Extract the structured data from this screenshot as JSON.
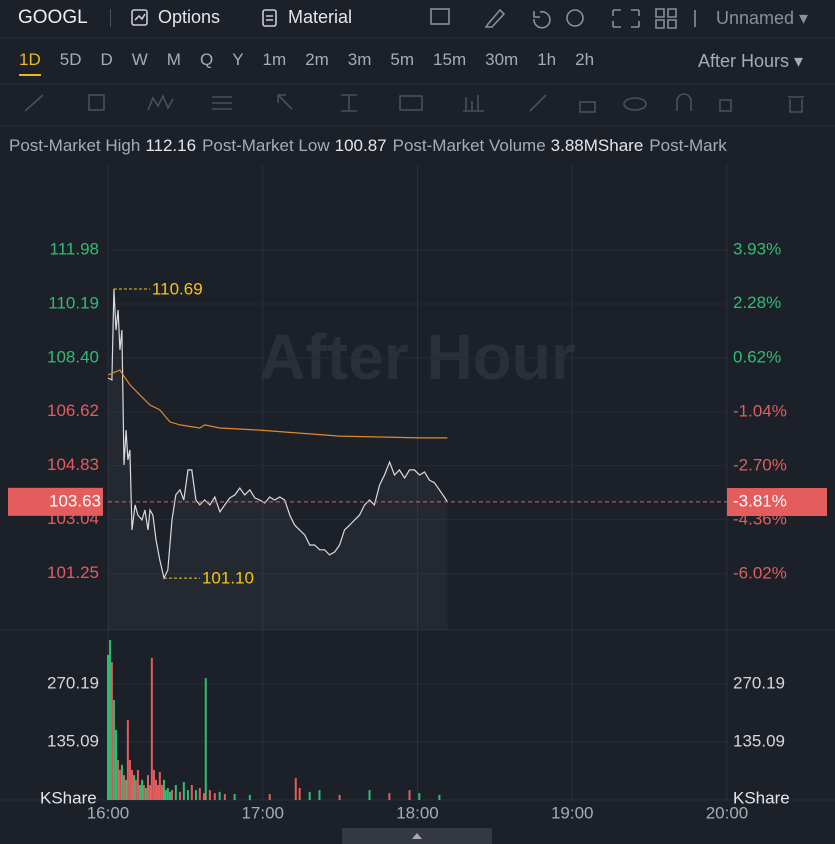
{
  "toolbar": {
    "symbol": "GOOGL",
    "options": "Options",
    "material": "Material",
    "layout": "Unnamed"
  },
  "timeframes": {
    "items": [
      "1D",
      "5D",
      "D",
      "W",
      "M",
      "Q",
      "Y",
      "1m",
      "2m",
      "3m",
      "5m",
      "15m",
      "30m",
      "1h",
      "2h"
    ],
    "session": "After Hours"
  },
  "stats": [
    {
      "label": "Post-Market High",
      "value": 112.16
    },
    {
      "label": "Post-Market Low",
      "value": 100.87
    },
    {
      "label": "Post-Market Volume",
      "value": "3.88MShare"
    },
    {
      "label": "Post-Mark"
    }
  ],
  "chart_data": [
    {
      "type": "line",
      "watermark": "After Hour",
      "xlim": [
        0,
        240
      ],
      "ylim": [
        99.38,
        114.8
      ],
      "y2lim": [
        -7.74,
        6.54
      ],
      "yticks": [
        111.98,
        110.19,
        {
          "value": 108.4,
          "label": "108.40"
        },
        106.62,
        104.83,
        103.04,
        101.25
      ],
      "y2ticks": [
        {
          "value": 3.93,
          "label": "3.93%"
        },
        {
          "value": 2.28,
          "label": "2.28%"
        },
        {
          "value": 0.62,
          "label": "0.62%"
        },
        {
          "value": -1.04,
          "label": "-1.04%"
        },
        {
          "value": -2.7,
          "label": "-2.70%"
        },
        {
          "value": -4.36,
          "label": "-4.36%"
        },
        {
          "value": -6.02,
          "label": "-6.02%"
        }
      ],
      "up_color": "#2fbd73",
      "down_color": "#e35d5d",
      "grid": true,
      "series": [
        {
          "color": "#d9dadc",
          "x": [
            0,
            1.5,
            2.3,
            3.1,
            3.9,
            4.6,
            5.4,
            6.2,
            7.0,
            7.7,
            8.5,
            9.3,
            10.5,
            11.6,
            13.2,
            14.3,
            15.5,
            16.3,
            17.4,
            18.6,
            20.1,
            21.7,
            23.2,
            24.8,
            26.3,
            27.9,
            29.4,
            31.0,
            32.5,
            34.1,
            35.6,
            37.5,
            39.5,
            41.4,
            43.4,
            45.3,
            47.2,
            49.2,
            51.1,
            53.0,
            55.0,
            56.9,
            58.8,
            60.8,
            62.7,
            64.6,
            66.6,
            68.5,
            70.5,
            72.4,
            74.3,
            76.3,
            78.2,
            80.1,
            82.1,
            84.0,
            85.9,
            87.9,
            89.8,
            91.7,
            93.7,
            95.6,
            97.5,
            99.5,
            101.4,
            103.3,
            105.3,
            107.2,
            109.2,
            111.1,
            113.0,
            115.0,
            116.9,
            118.8,
            120.8,
            122.7,
            124.6,
            126.6,
            128.5,
            130.4,
            131.6
          ],
          "values": [
            107.74,
            107.67,
            110.69,
            109.33,
            109.99,
            108.67,
            109.33,
            104.85,
            106.01,
            105.02,
            105.35,
            102.7,
            103.53,
            103.19,
            103.03,
            103.36,
            102.7,
            103.36,
            103.19,
            102.37,
            101.7,
            101.1,
            101.37,
            103.03,
            103.86,
            104.03,
            103.69,
            104.69,
            104.69,
            103.69,
            103.53,
            103.69,
            103.53,
            103.79,
            103.3,
            103.53,
            103.76,
            103.86,
            104.09,
            103.86,
            104.03,
            103.76,
            103.69,
            103.59,
            103.79,
            103.69,
            103.79,
            103.69,
            103.19,
            102.86,
            102.7,
            102.53,
            102.2,
            102.2,
            102.04,
            102.04,
            101.87,
            101.97,
            102.2,
            102.7,
            102.86,
            103.03,
            103.19,
            103.53,
            103.69,
            103.53,
            104.19,
            104.52,
            104.95,
            104.52,
            104.69,
            104.42,
            104.69,
            104.69,
            104.52,
            104.62,
            104.35,
            104.26,
            104.03,
            103.79,
            103.63
          ]
        },
        {
          "color": "#e0892b",
          "x": [
            0,
            4.6,
            8.5,
            12.4,
            16.3,
            20.1,
            24.0,
            27.9,
            35.6,
            37.5,
            43.4,
            58.8,
            74.3,
            89.8,
            105.3,
            120.8,
            131.6
          ],
          "values": [
            107.84,
            108.0,
            107.51,
            107.17,
            106.84,
            106.68,
            106.28,
            106.18,
            106.08,
            106.18,
            106.08,
            106.01,
            105.91,
            105.81,
            105.78,
            105.75,
            105.75
          ]
        }
      ],
      "annotations": [
        {
          "x": 2.3,
          "value": 110.69,
          "label": "110.69"
        },
        {
          "x": 21.7,
          "value": 101.1,
          "label": "101.10"
        }
      ],
      "annotation_color": "#f5c518",
      "last_price": 103.63,
      "last_change": {
        "value": -3.81,
        "label": "-3.81%"
      }
    },
    {
      "type": "bar",
      "xlim": [
        0,
        240
      ],
      "ylim": [
        0,
        396
      ],
      "yticks": [
        135.09,
        270.19
      ],
      "ylabel": "KShare",
      "grid": true,
      "xticks": [
        {
          "value": 0,
          "label": "16:00"
        },
        {
          "value": 60,
          "label": "17:00"
        },
        {
          "value": 120,
          "label": "18:00"
        },
        {
          "value": 180,
          "label": "19:00"
        },
        {
          "value": 240,
          "label": "20:00"
        }
      ],
      "series": [
        {
          "color": "#2fbd73",
          "x": [
            0,
            0.8,
            2.3,
            3.1,
            5.4,
            7.0,
            10.1,
            12.4,
            13.2,
            14.7,
            21.7,
            22.4,
            23.2,
            24.0,
            26.3,
            29.4,
            31.0,
            34.1,
            37.9,
            43.3,
            49.1,
            55.0,
            78.2,
            82.0,
            101.4,
            120.7,
            128.5
          ],
          "values": [
            338,
            373,
            233,
            163,
            82,
            47,
            58,
            35,
            47,
            28,
            47,
            23,
            28,
            19,
            35,
            42,
            23,
            23,
            284,
            19,
            14,
            12,
            19,
            23,
            23,
            16,
            12
          ]
        },
        {
          "color": "#e35d5d",
          "x": [
            1.5,
            3.9,
            4.6,
            6.2,
            7.7,
            8.5,
            9.3,
            10.8,
            11.6,
            13.9,
            15.5,
            16.3,
            17.0,
            17.8,
            18.6,
            19.4,
            20.1,
            20.9,
            24.8,
            27.9,
            32.5,
            35.6,
            37.2,
            39.5,
            41.4,
            45.3,
            62.7,
            72.8,
            74.3,
            89.8,
            109.1,
            116.9
          ],
          "values": [
            321,
            93,
            70,
            58,
            186,
            93,
            70,
            47,
            70,
            35,
            58,
            35,
            331,
            70,
            47,
            35,
            65,
            35,
            23,
            19,
            35,
            28,
            16,
            23,
            16,
            14,
            14,
            51,
            28,
            12,
            16,
            23
          ]
        }
      ]
    }
  ]
}
